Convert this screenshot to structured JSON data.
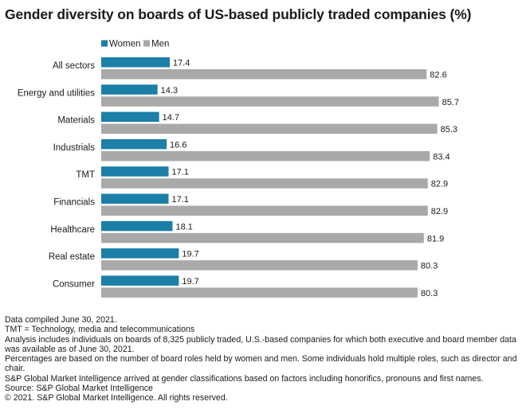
{
  "title": "Gender diversity on boards of US-based publicly traded companies (%)",
  "colors": {
    "women": "#1b7fa8",
    "men": "#a9a9a9"
  },
  "chart_data": {
    "type": "bar",
    "orientation": "horizontal",
    "title": "Gender diversity on boards of US-based publicly traded companies (%)",
    "xlabel": "",
    "ylabel": "",
    "xlim": [
      0,
      100
    ],
    "grid": false,
    "legend_position": "top-left",
    "categories": [
      "All sectors",
      "Energy and utilities",
      "Materials",
      "Industrials",
      "TMT",
      "Financials",
      "Healthcare",
      "Real estate",
      "Consumer"
    ],
    "series": [
      {
        "name": "Women",
        "color": "#1b7fa8",
        "values": [
          17.4,
          14.3,
          14.7,
          16.6,
          17.1,
          17.1,
          18.1,
          19.7,
          19.7
        ],
        "labels": [
          "17.4",
          "14.3",
          "14.7",
          "16.6",
          "17.1",
          "17.1",
          "18.1",
          "19.7",
          "19.7"
        ]
      },
      {
        "name": "Men",
        "color": "#a9a9a9",
        "values": [
          82.6,
          85.7,
          85.3,
          83.4,
          82.9,
          82.9,
          81.9,
          80.3,
          80.3
        ],
        "labels": [
          "82.6",
          "85.7",
          "85.3",
          "83.4",
          "82.9",
          "82.9",
          "81.9",
          "80.3",
          "80.3"
        ]
      }
    ]
  },
  "footer": [
    "Data compiled June 30, 2021.",
    "TMT = Technology, media and telecommunications",
    "Analysis includes individuals on boards of 8,325 publicly traded, U.S.-based companies for which both executive and board member data was available as of June 30, 2021.",
    "Percentages are based on the number of board roles held by women and men. Some individuals hold multiple roles, such as director and chair.",
    "S&P Global Market Intelligence arrived at gender classifications based on factors including honorifics, pronouns and first names.",
    "Source: S&P Global Market Intelligence",
    "© 2021. S&P Global Market Intelligence. All rights reserved."
  ]
}
